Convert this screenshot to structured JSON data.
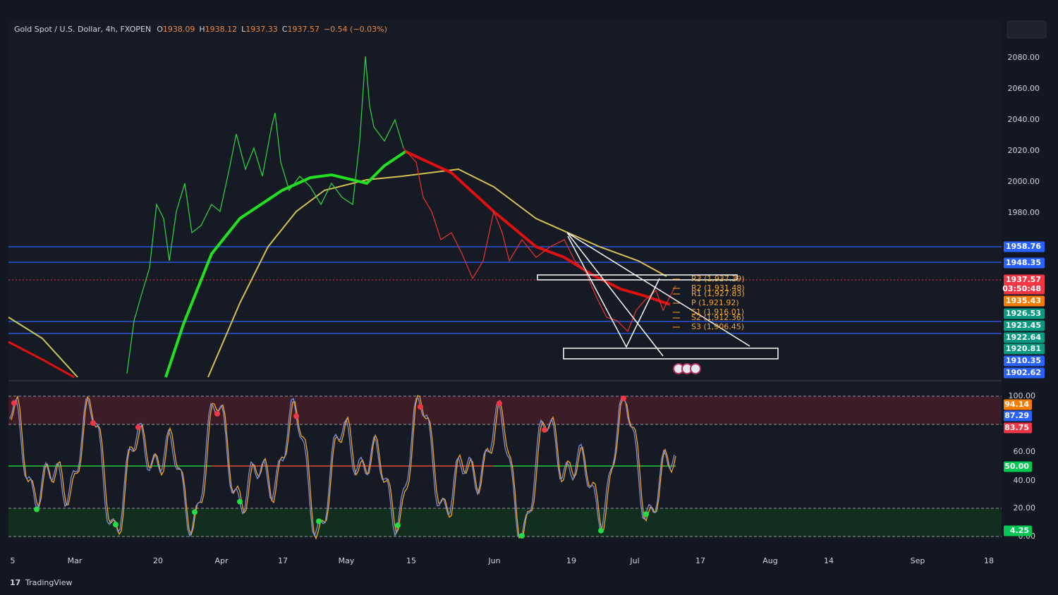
{
  "header": {
    "symbol": "Gold Spot / U.S. Dollar, 4h, FXOPEN",
    "ohlc": [
      {
        "label": "O",
        "value": "1938.09"
      },
      {
        "label": "H",
        "value": "1938.12"
      },
      {
        "label": "L",
        "value": "1937.33"
      },
      {
        "label": "C",
        "value": "1937.57"
      }
    ],
    "change": "−0.54 (−0.03%)"
  },
  "price_axis": [
    "2080.00",
    "2060.00",
    "2040.00",
    "2020.00",
    "2000.00",
    "1980.00"
  ],
  "price_badges": [
    {
      "text": "1958.76",
      "color": "#2962ff"
    },
    {
      "text": "1948.35",
      "color": "#2962ff"
    },
    {
      "text": "1937.57",
      "color": "#f23645",
      "countdown": "03:50:48"
    },
    {
      "text": "1935.43",
      "color": "#f57c00"
    },
    {
      "text": "1926.53",
      "color": "#089981"
    },
    {
      "text": "1923.45",
      "color": "#089981"
    },
    {
      "text": "1922.64",
      "color": "#089981"
    },
    {
      "text": "1920.81",
      "color": "#089981"
    },
    {
      "text": "1910.35",
      "color": "#2962ff"
    },
    {
      "text": "1902.62",
      "color": "#2962ff"
    }
  ],
  "pivots": [
    "R3 (1,937.39)",
    "R2 (1,931.48)",
    "R1 (1,927.83)",
    "P (1,921.92)",
    "S1 (1,916.01)",
    "S2 (1,912.36)",
    "S3 (1,906.45)"
  ],
  "osc_axis": [
    "100.00",
    "60.00",
    "40.00",
    "20.00",
    "0.00"
  ],
  "osc_badges": [
    {
      "text": "94.14",
      "color": "#f57c00"
    },
    {
      "text": "87.29",
      "color": "#2962ff"
    },
    {
      "text": "83.75",
      "color": "#f23645"
    },
    {
      "text": "50.00",
      "color": "#00c853"
    },
    {
      "text": "4.25",
      "color": "#00c853"
    }
  ],
  "time_axis": [
    "5",
    "Mar",
    "20",
    "Apr",
    "17",
    "May",
    "15",
    "Jun",
    "19",
    "Jul",
    "17",
    "Aug",
    "14",
    "Sep",
    "18"
  ],
  "brand": "TradingView"
}
